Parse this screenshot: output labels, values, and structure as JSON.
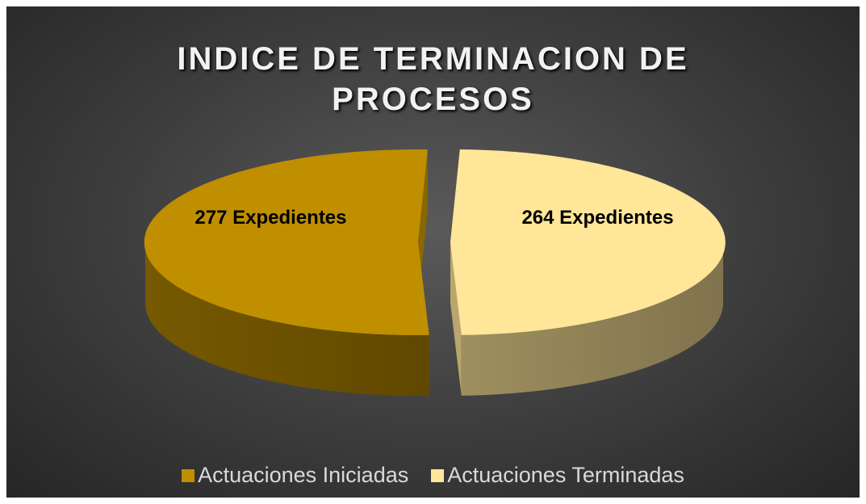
{
  "chart_data": {
    "type": "pie3d",
    "title": "INDICE DE TERMINACION DE PROCESOS",
    "categories": [
      "Actuaciones Iniciadas",
      "Actuaciones Terminadas"
    ],
    "values": [
      277,
      264
    ],
    "value_labels": [
      "277 Expedientes",
      "264 Expedientes"
    ],
    "colors": [
      "#bf8f00",
      "#ffe699"
    ],
    "legend": "bottom"
  }
}
